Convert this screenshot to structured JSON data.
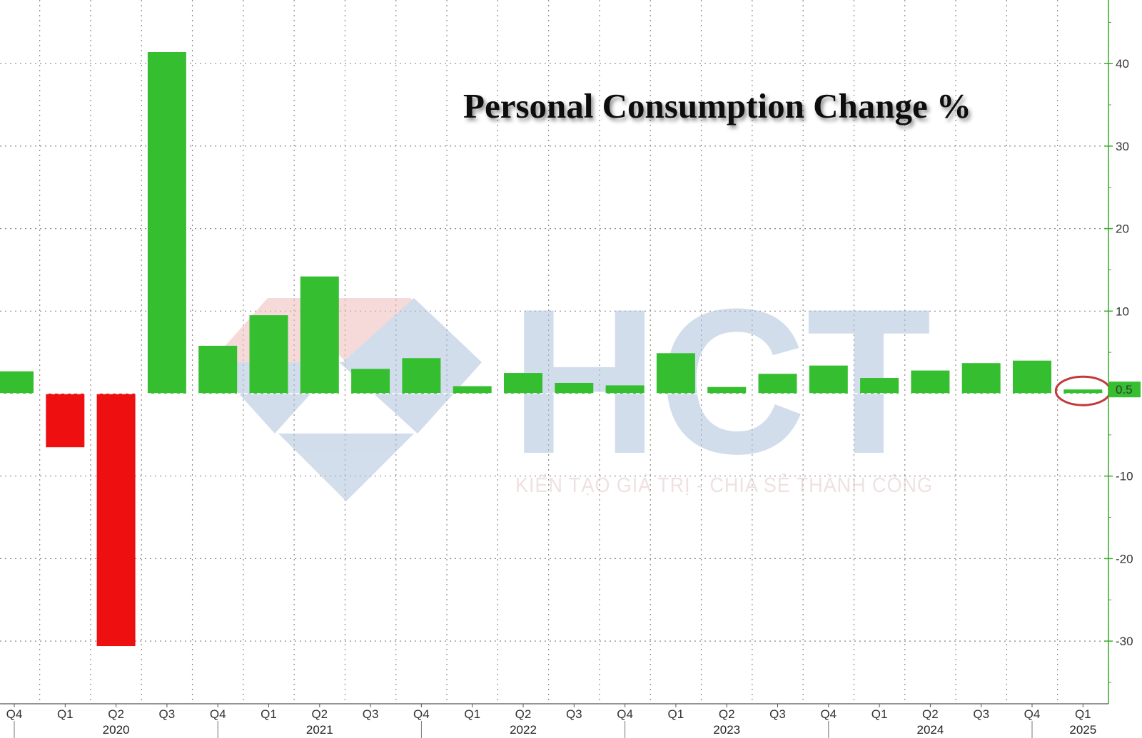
{
  "chart_data": {
    "type": "bar",
    "title": "Personal Consumption Change %",
    "xlabel": "",
    "ylabel": "",
    "ylim": [
      -38,
      47
    ],
    "y_ticks": [
      -30,
      -20,
      -10,
      10,
      20,
      30,
      40
    ],
    "grid": true,
    "categories": [
      "Q4",
      "Q1",
      "Q2",
      "Q3",
      "Q4",
      "Q1",
      "Q2",
      "Q3",
      "Q4",
      "Q1",
      "Q2",
      "Q3",
      "Q4",
      "Q1",
      "Q2",
      "Q3",
      "Q4",
      "Q1",
      "Q2",
      "Q3",
      "Q4",
      "Q1"
    ],
    "years": [
      {
        "label": "2020",
        "category_index": 2
      },
      {
        "label": "2021",
        "category_index": 6
      },
      {
        "label": "2022",
        "category_index": 10
      },
      {
        "label": "2023",
        "category_index": 14
      },
      {
        "label": "2024",
        "category_index": 18
      },
      {
        "label": "2025",
        "category_index": 21
      }
    ],
    "values": [
      2.7,
      -6.5,
      -30.6,
      41.4,
      5.8,
      9.5,
      14.2,
      3.0,
      4.3,
      0.9,
      2.5,
      1.3,
      1.0,
      4.9,
      0.8,
      2.4,
      3.4,
      1.9,
      2.8,
      3.7,
      4.0,
      0.5
    ],
    "colors": {
      "positive": "#35bf30",
      "negative": "#ee1010",
      "axis": "#3aab2b",
      "highlight": "#c23a3a"
    },
    "last_value_label": "0.5",
    "highlighted_category_index": 21
  },
  "watermark": {
    "logo_text": "HCT",
    "tagline": "KIẾN TẠO GIÁ TRỊ - CHIA SẺ THÀNH CÔNG"
  }
}
